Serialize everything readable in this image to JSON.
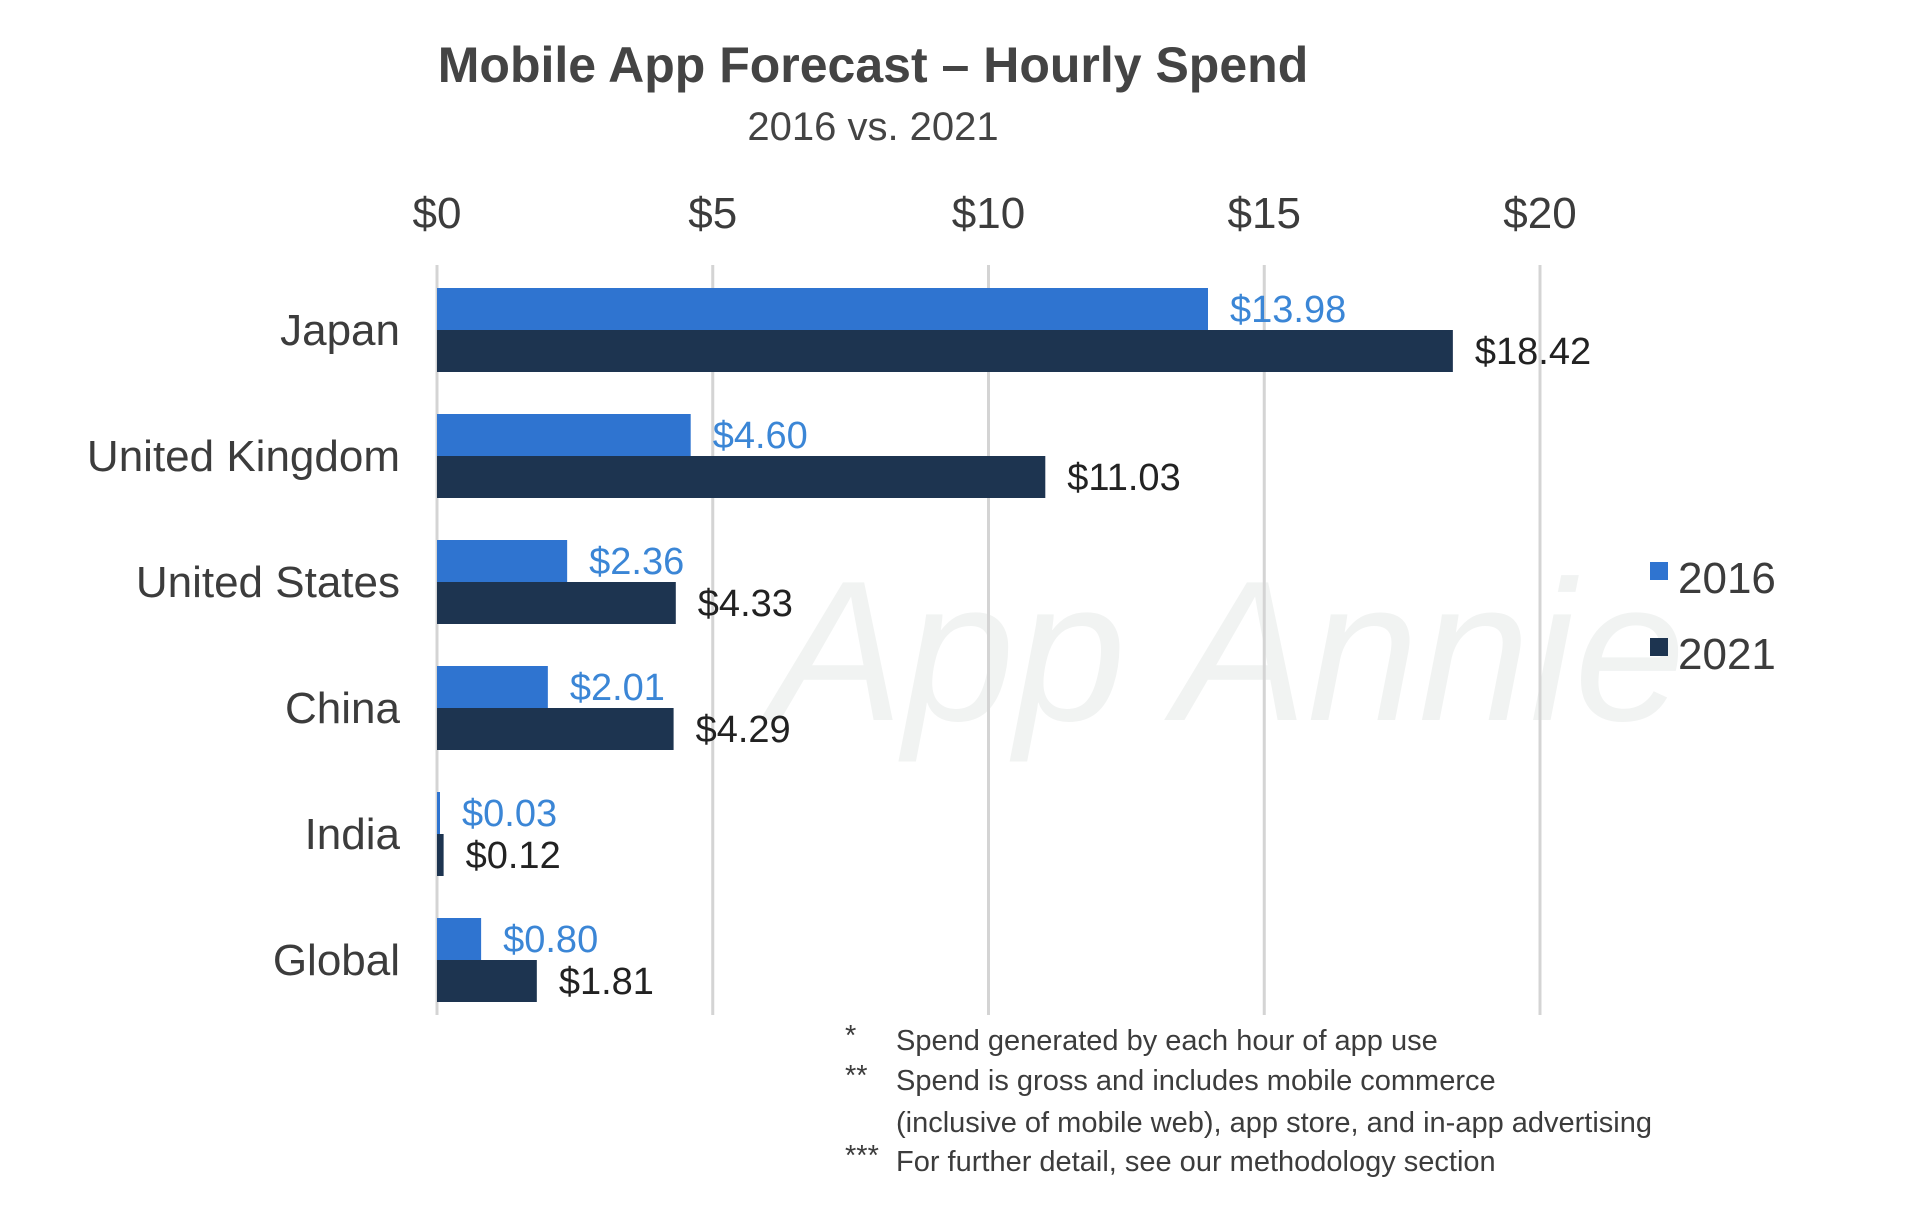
{
  "chart_data": {
    "type": "bar",
    "orientation": "horizontal",
    "title": "Mobile App Forecast – Hourly Spend",
    "subtitle": "2016 vs. 2021",
    "categories": [
      "Japan",
      "United Kingdom",
      "United States",
      "China",
      "India",
      "Global"
    ],
    "series": [
      {
        "name": "2016",
        "color": "#2f74d0",
        "label_color": "#3b86d6",
        "values": [
          13.98,
          4.6,
          2.36,
          2.01,
          0.03,
          0.8
        ],
        "labels": [
          "$13.98",
          "$4.60",
          "$2.36",
          "$2.01",
          "$0.03",
          "$0.80"
        ]
      },
      {
        "name": "2021",
        "color": "#1d3450",
        "label_color": "#222222",
        "values": [
          18.42,
          11.03,
          4.33,
          4.29,
          0.12,
          1.81
        ],
        "labels": [
          "$18.42",
          "$11.03",
          "$4.33",
          "$4.29",
          "$0.12",
          "$1.81"
        ]
      }
    ],
    "xlim": [
      0,
      20
    ],
    "xticks": [
      0,
      5,
      10,
      15,
      20
    ],
    "xtick_labels": [
      "$0",
      "$5",
      "$10",
      "$15",
      "$20"
    ],
    "axis_position": "top",
    "grid": true,
    "legend_position": "right"
  },
  "watermark": "App Annie",
  "footnotes": [
    {
      "marker": "*",
      "text": "Spend generated by each hour of app use"
    },
    {
      "marker": "**",
      "text": "Spend is gross and includes mobile commerce"
    },
    {
      "marker": "",
      "text": "(inclusive  of mobile web), app store, and in-app advertising"
    },
    {
      "marker": "***",
      "text": "For further detail, see our methodology section"
    }
  ]
}
